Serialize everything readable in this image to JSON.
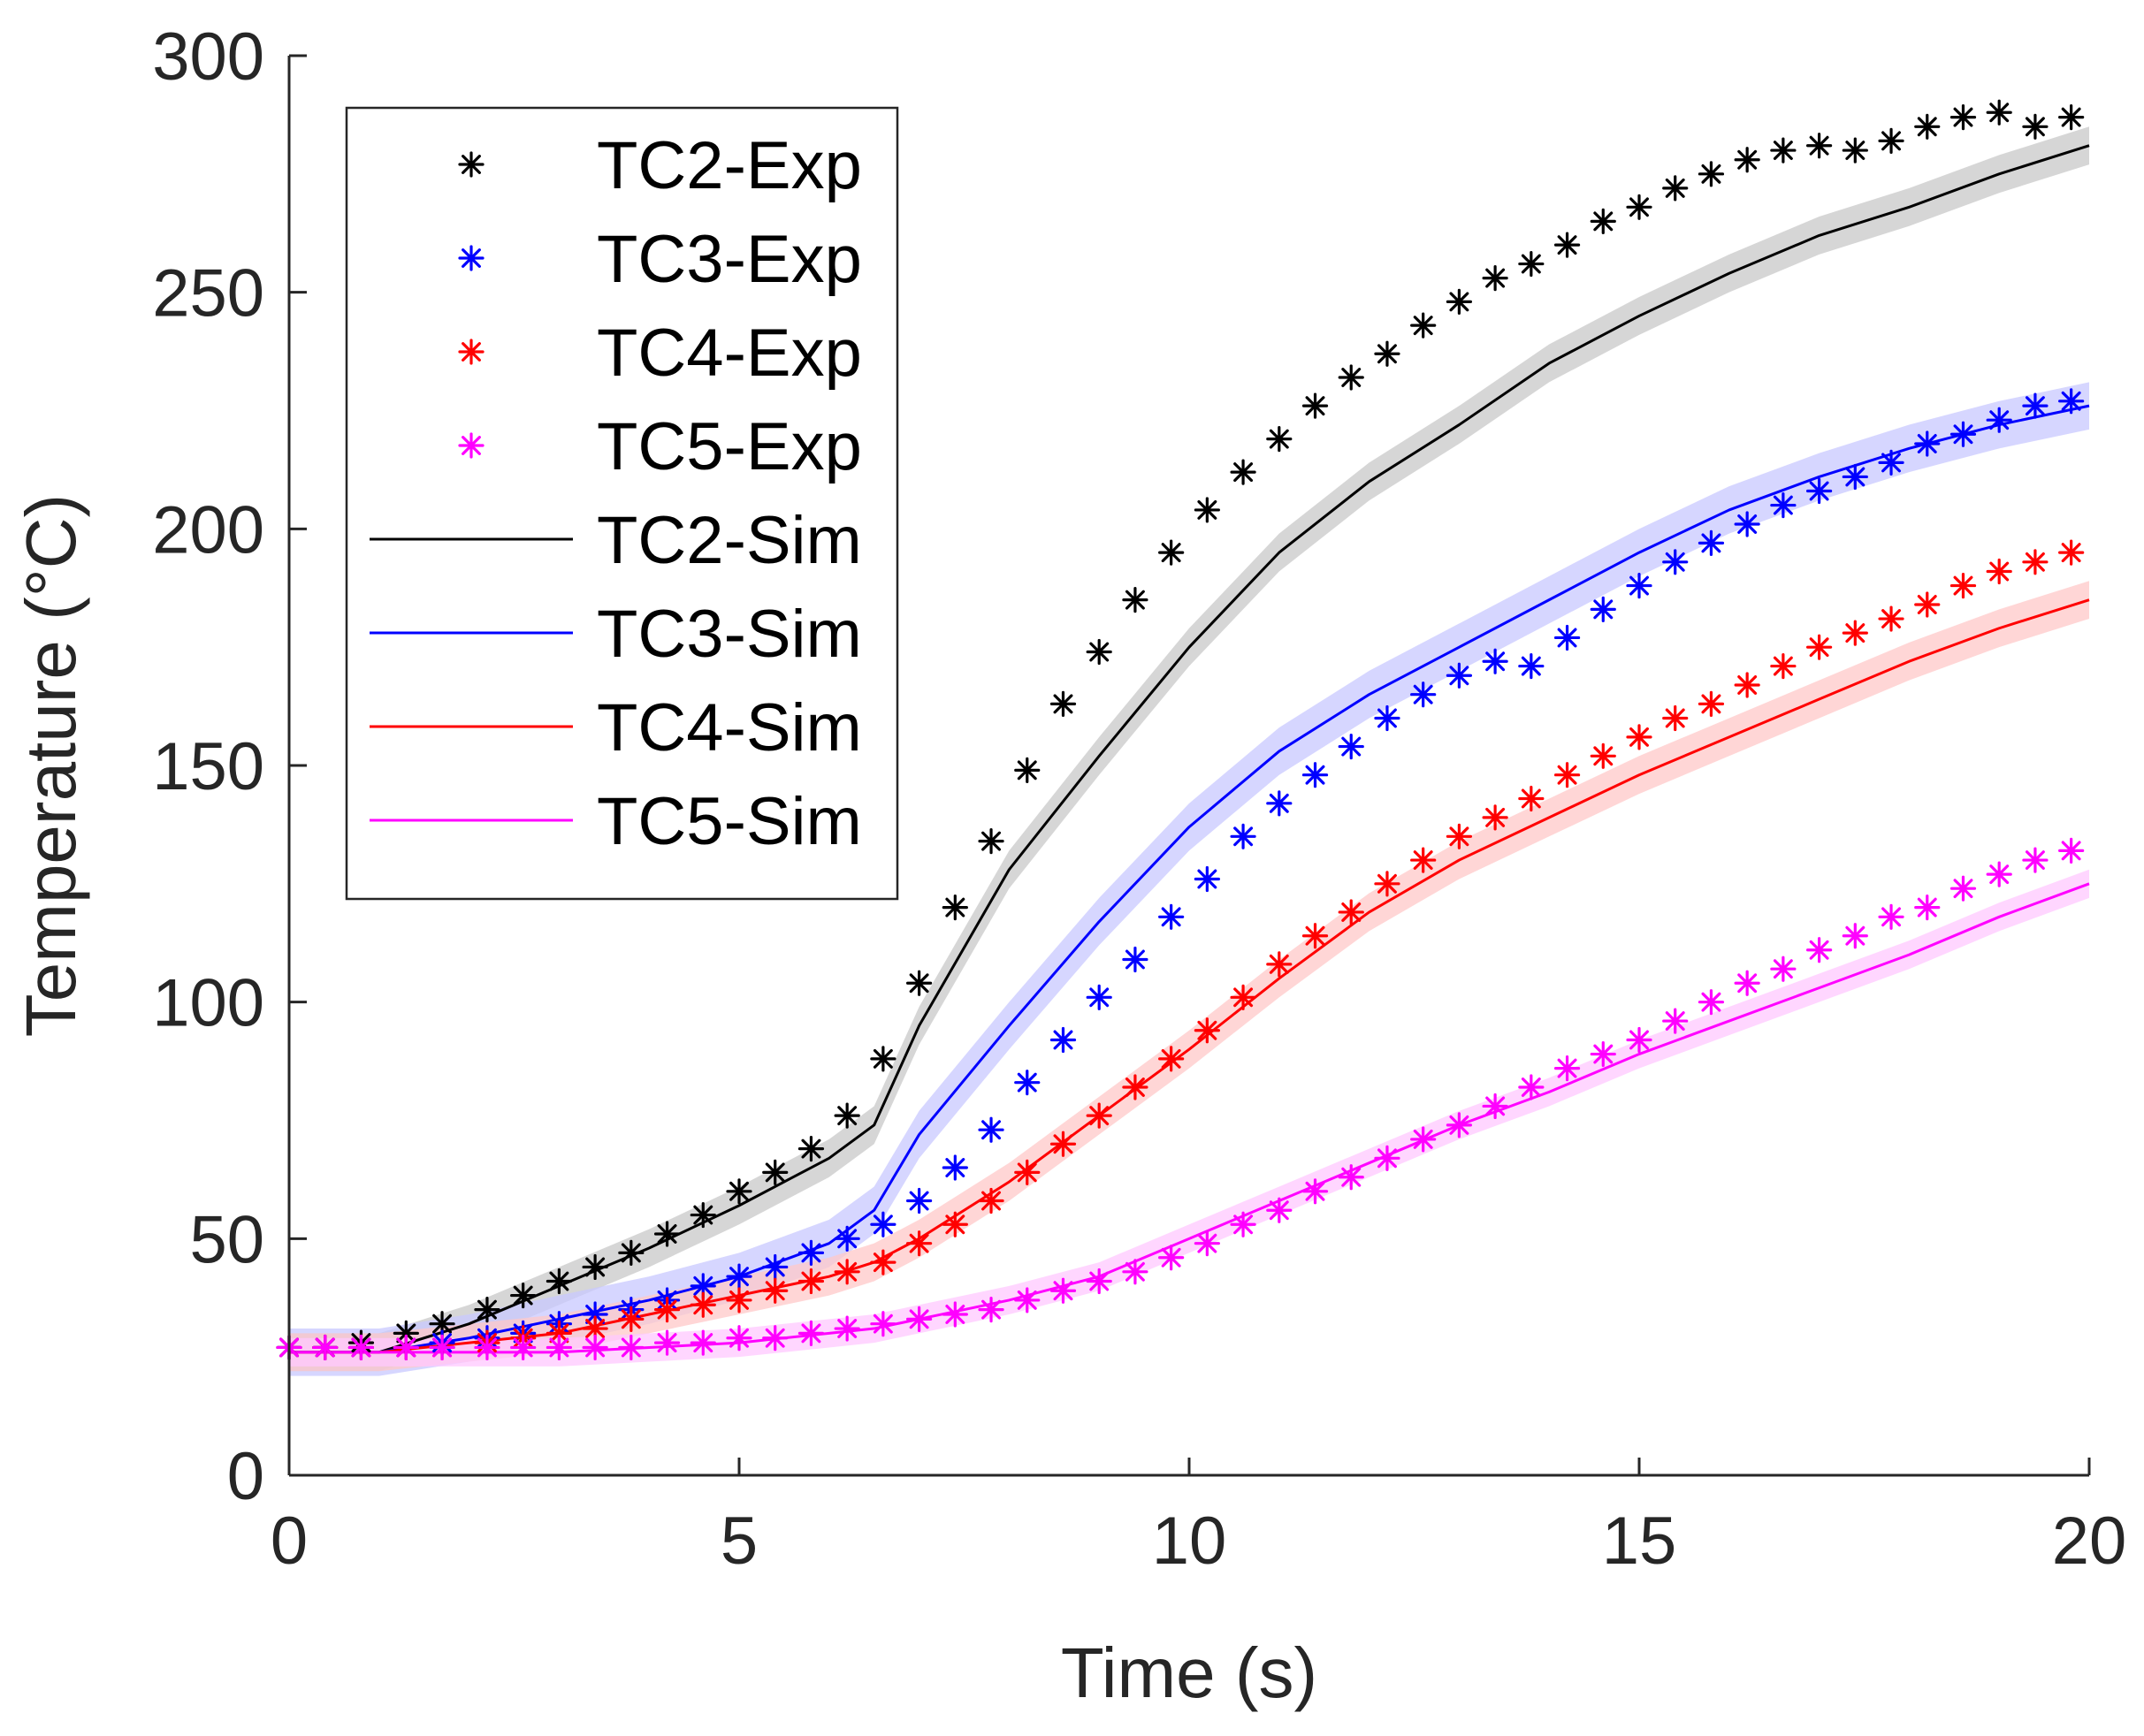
{
  "chart_data": {
    "type": "line",
    "title": "",
    "xlabel": "Time (s)",
    "ylabel": "Temperature (°C)",
    "xlim": [
      0,
      20
    ],
    "ylim": [
      0,
      300
    ],
    "xticks": [
      0,
      5,
      10,
      15,
      20
    ],
    "yticks": [
      0,
      50,
      100,
      150,
      200,
      250,
      300
    ],
    "xtick_labels": [
      "0",
      "5",
      "10",
      "15",
      "20"
    ],
    "ytick_labels": [
      "0",
      "50",
      "100",
      "150",
      "200",
      "250",
      "300"
    ],
    "grid": false,
    "legend_position": "top-left",
    "colors": {
      "TC2": "#000000",
      "TC3": "#0000ff",
      "TC4": "#ff0000",
      "TC5": "#ff00ff"
    },
    "band_colors": {
      "TC2": "#c8c8c8",
      "TC3": "#c8c8ff",
      "TC4": "#ffc8c8",
      "TC5": "#ffc8ff"
    },
    "legend": [
      {
        "label": "TC2-Exp",
        "series": "TC2",
        "kind": "marker"
      },
      {
        "label": "TC3-Exp",
        "series": "TC3",
        "kind": "marker"
      },
      {
        "label": "TC4-Exp",
        "series": "TC4",
        "kind": "marker"
      },
      {
        "label": "TC5-Exp",
        "series": "TC5",
        "kind": "marker"
      },
      {
        "label": "TC2-Sim",
        "series": "TC2",
        "kind": "line"
      },
      {
        "label": "TC3-Sim",
        "series": "TC3",
        "kind": "line"
      },
      {
        "label": "TC4-Sim",
        "series": "TC4",
        "kind": "line"
      },
      {
        "label": "TC5-Sim",
        "series": "TC5",
        "kind": "line"
      }
    ],
    "exp_x": [
      0,
      0.4,
      0.8,
      1.3,
      1.7,
      2.2,
      2.6,
      3.0,
      3.4,
      3.8,
      4.2,
      4.6,
      5.0,
      5.4,
      5.8,
      6.2,
      6.6,
      7.0,
      7.4,
      7.8,
      8.2,
      8.6,
      9.0,
      9.4,
      9.8,
      10.2,
      10.6,
      11.0,
      11.4,
      11.8,
      12.2,
      12.6,
      13.0,
      13.4,
      13.8,
      14.2,
      14.6,
      15.0,
      15.4,
      15.8,
      16.2,
      16.6,
      17.0,
      17.4,
      17.8,
      18.2,
      18.6,
      19.0,
      19.4,
      19.8
    ],
    "exp_series": [
      {
        "name": "TC2-Exp",
        "series": "TC2",
        "values": [
          27,
          27,
          28,
          30,
          32,
          35,
          38,
          41,
          44,
          47,
          51,
          55,
          60,
          64,
          69,
          76,
          88,
          104,
          120,
          134,
          149,
          163,
          174,
          185,
          195,
          204,
          212,
          219,
          226,
          232,
          237,
          243,
          248,
          253,
          256,
          260,
          265,
          268,
          272,
          275,
          278,
          280,
          281,
          280,
          282,
          285,
          287,
          288,
          285,
          287
        ]
      },
      {
        "name": "TC3-Exp",
        "series": "TC3",
        "values": [
          27,
          27,
          27,
          27,
          28,
          29,
          30,
          32,
          34,
          35,
          37,
          40,
          42,
          44,
          47,
          50,
          53,
          58,
          65,
          73,
          83,
          92,
          101,
          109,
          118,
          126,
          135,
          142,
          148,
          154,
          160,
          165,
          169,
          172,
          171,
          177,
          183,
          188,
          193,
          197,
          201,
          205,
          208,
          211,
          214,
          218,
          220,
          223,
          226,
          227
        ]
      },
      {
        "name": "TC4-Exp",
        "series": "TC4",
        "values": [
          27,
          27,
          27,
          27,
          27,
          28,
          29,
          30,
          31,
          33,
          35,
          36,
          37,
          39,
          41,
          43,
          45,
          49,
          53,
          58,
          64,
          70,
          76,
          82,
          88,
          94,
          101,
          108,
          114,
          119,
          125,
          130,
          135,
          139,
          143,
          148,
          152,
          156,
          160,
          163,
          167,
          171,
          175,
          178,
          181,
          184,
          188,
          191,
          193,
          195
        ]
      },
      {
        "name": "TC5-Exp",
        "series": "TC5",
        "values": [
          27,
          27,
          27,
          27,
          27,
          27,
          27,
          27,
          27,
          27,
          28,
          28,
          29,
          29,
          30,
          31,
          32,
          33,
          34,
          35,
          37,
          39,
          41,
          43,
          46,
          49,
          53,
          56,
          60,
          63,
          67,
          71,
          74,
          78,
          82,
          86,
          89,
          92,
          96,
          100,
          104,
          107,
          111,
          114,
          118,
          120,
          124,
          127,
          130,
          132
        ]
      }
    ],
    "sim_x": [
      0,
      1,
      2,
      3,
      4,
      5,
      6,
      6.5,
      7,
      8,
      9,
      10,
      11,
      12,
      13,
      14,
      15,
      16,
      17,
      18,
      19,
      20
    ],
    "sim_series": [
      {
        "name": "TC2-Sim",
        "series": "TC2",
        "band": 4,
        "values": [
          26,
          26,
          32,
          40,
          48,
          57,
          67,
          74,
          95,
          128,
          152,
          175,
          195,
          210,
          222,
          235,
          245,
          254,
          262,
          268,
          275,
          281
        ]
      },
      {
        "name": "TC3-Sim",
        "series": "TC3",
        "band": 5,
        "values": [
          26,
          26,
          29,
          33,
          37,
          42,
          49,
          56,
          72,
          95,
          117,
          137,
          153,
          165,
          175,
          185,
          195,
          204,
          211,
          217,
          222,
          226
        ]
      },
      {
        "name": "TC4-Sim",
        "series": "TC4",
        "band": 4,
        "values": [
          26,
          26,
          28,
          30,
          34,
          38,
          42,
          45,
          50,
          62,
          76,
          90,
          105,
          119,
          130,
          139,
          148,
          156,
          164,
          172,
          179,
          185
        ]
      },
      {
        "name": "TC5-Sim",
        "series": "TC5",
        "band": 3,
        "values": [
          26,
          26,
          26,
          26,
          27,
          28,
          30,
          31,
          33,
          37,
          42,
          50,
          58,
          66,
          74,
          81,
          89,
          96,
          103,
          110,
          118,
          125
        ]
      }
    ]
  }
}
